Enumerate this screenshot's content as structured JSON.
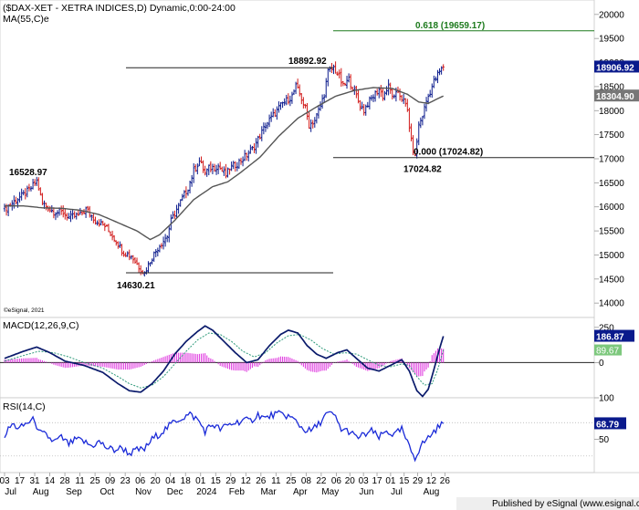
{
  "chart_data": [
    {
      "type": "candlestick",
      "title": "($DAX-XET - XETRA INDICES,D) Dynamic,0:00-24:00",
      "indicator_label": "MA(55,C)e",
      "watermark": "©eSignal, 2021",
      "ylim": [
        13700,
        20300
      ],
      "yticks": [
        14000,
        14500,
        15000,
        15500,
        16000,
        16500,
        17000,
        17500,
        18000,
        18500,
        19000,
        19500,
        20000
      ],
      "last_price": "18906.92",
      "ma_value": "18304.90",
      "colors": {
        "up": "#0a1a8c",
        "down": "#d11a1a",
        "ma": "#555555",
        "last_tag": "#0a1a8c",
        "ma_tag": "#777777",
        "fib": "#1d7a1d"
      },
      "fib_label": "0.618 (19659.17)",
      "fib_zero_label": "0.000 (17024.82)",
      "annotations": [
        {
          "label": "16528.97",
          "value": 16528.97
        },
        {
          "label": "14630.21",
          "value": 14630.21
        },
        {
          "label": "18892.92",
          "value": 18892.92
        },
        {
          "label": "17024.82",
          "value": 17024.82
        }
      ],
      "close_path": [
        [
          0,
          15950
        ],
        [
          6,
          16150
        ],
        [
          10,
          16250
        ],
        [
          13,
          16350
        ],
        [
          17,
          16529
        ],
        [
          20,
          16080
        ],
        [
          26,
          15900
        ],
        [
          31,
          15880
        ],
        [
          34,
          15780
        ],
        [
          40,
          15830
        ],
        [
          43,
          15950
        ],
        [
          48,
          15720
        ],
        [
          53,
          15600
        ],
        [
          58,
          15350
        ],
        [
          63,
          15050
        ],
        [
          67,
          14980
        ],
        [
          72,
          14700
        ],
        [
          74,
          14630
        ],
        [
          78,
          14950
        ],
        [
          81,
          15150
        ],
        [
          86,
          15400
        ],
        [
          88,
          15700
        ],
        [
          93,
          16100
        ],
        [
          97,
          16400
        ],
        [
          100,
          16750
        ],
        [
          103,
          16950
        ],
        [
          106,
          16700
        ],
        [
          108,
          16800
        ],
        [
          113,
          16850
        ],
        [
          117,
          16650
        ],
        [
          119,
          16800
        ],
        [
          123,
          16900
        ],
        [
          126,
          17000
        ],
        [
          131,
          17200
        ],
        [
          134,
          17400
        ],
        [
          138,
          17700
        ],
        [
          143,
          17950
        ],
        [
          147,
          18150
        ],
        [
          152,
          18300
        ],
        [
          154,
          18500
        ],
        [
          156,
          18350
        ],
        [
          159,
          18050
        ],
        [
          161,
          17700
        ],
        [
          164,
          17800
        ],
        [
          167,
          18100
        ],
        [
          169,
          18350
        ],
        [
          171,
          18800
        ],
        [
          174,
          18893
        ],
        [
          177,
          18700
        ],
        [
          179,
          18500
        ],
        [
          182,
          18650
        ],
        [
          185,
          18400
        ],
        [
          187,
          18200
        ],
        [
          190,
          18000
        ],
        [
          192,
          18150
        ],
        [
          195,
          18300
        ],
        [
          198,
          18450
        ],
        [
          200,
          18300
        ],
        [
          203,
          18500
        ],
        [
          206,
          18250
        ],
        [
          208,
          18400
        ],
        [
          211,
          18200
        ],
        [
          213,
          18000
        ],
        [
          215,
          17350
        ],
        [
          217,
          17025
        ],
        [
          219,
          17700
        ],
        [
          221,
          17900
        ],
        [
          223,
          18200
        ],
        [
          225,
          18400
        ],
        [
          227,
          18600
        ],
        [
          229,
          18750
        ],
        [
          232,
          18907
        ]
      ],
      "ma_path": [
        [
          0,
          16020
        ],
        [
          10,
          16020
        ],
        [
          20,
          15980
        ],
        [
          30,
          15970
        ],
        [
          40,
          15930
        ],
        [
          50,
          15840
        ],
        [
          60,
          15670
        ],
        [
          70,
          15500
        ],
        [
          77,
          15320
        ],
        [
          82,
          15420
        ],
        [
          90,
          15720
        ],
        [
          100,
          16150
        ],
        [
          110,
          16420
        ],
        [
          118,
          16520
        ],
        [
          125,
          16720
        ],
        [
          135,
          17030
        ],
        [
          145,
          17470
        ],
        [
          155,
          17840
        ],
        [
          165,
          18080
        ],
        [
          175,
          18300
        ],
        [
          185,
          18420
        ],
        [
          195,
          18480
        ],
        [
          205,
          18460
        ],
        [
          213,
          18340
        ],
        [
          219,
          18180
        ],
        [
          224,
          18150
        ],
        [
          229,
          18250
        ],
        [
          232,
          18305
        ]
      ],
      "x_ticks": [
        {
          "label": "03",
          "bar": 0
        },
        {
          "label": "17",
          "bar": 10
        },
        {
          "label": "31",
          "bar": 20
        },
        {
          "label": "14",
          "bar": 30
        },
        {
          "label": "28",
          "bar": 40
        },
        {
          "label": "11",
          "bar": 50
        },
        {
          "label": "25",
          "bar": 60
        },
        {
          "label": "09",
          "bar": 70
        },
        {
          "label": "23",
          "bar": 80
        },
        {
          "label": "06",
          "bar": 90
        },
        {
          "label": "20",
          "bar": 100
        },
        {
          "label": "04",
          "bar": 110
        },
        {
          "label": "18",
          "bar": 120
        },
        {
          "label": "01",
          "bar": 130
        },
        {
          "label": "15",
          "bar": 140
        },
        {
          "label": "29",
          "bar": 150
        },
        {
          "label": "12",
          "bar": 160
        },
        {
          "label": "26",
          "bar": 170
        },
        {
          "label": "11",
          "bar": 180
        },
        {
          "label": "25",
          "bar": 190
        },
        {
          "label": "08",
          "bar": 200
        },
        {
          "label": "22",
          "bar": 210
        },
        {
          "label": "06",
          "bar": 220
        },
        {
          "label": "20",
          "bar": 229
        },
        {
          "label": "03",
          "bar": 238
        },
        {
          "label": "17",
          "bar": 247
        },
        {
          "label": "01",
          "bar": 256
        },
        {
          "label": "15",
          "bar": 265
        },
        {
          "label": "29",
          "bar": 274
        },
        {
          "label": "12",
          "bar": 283
        },
        {
          "label": "26",
          "bar": 292
        }
      ],
      "month_labels": [
        {
          "label": "Jul",
          "bar": 4
        },
        {
          "label": "Aug",
          "bar": 24
        },
        {
          "label": "Sep",
          "bar": 46
        },
        {
          "label": "Oct",
          "bar": 68
        },
        {
          "label": "Nov",
          "bar": 92
        },
        {
          "label": "Dec",
          "bar": 113
        },
        {
          "label": "2024",
          "bar": 134
        },
        {
          "label": "Feb",
          "bar": 154
        },
        {
          "label": "Mar",
          "bar": 175
        },
        {
          "label": "Apr",
          "bar": 196
        },
        {
          "label": "May",
          "bar": 216
        },
        {
          "label": "Jun",
          "bar": 240
        },
        {
          "label": "Jul",
          "bar": 260
        },
        {
          "label": "Aug",
          "bar": 283
        }
      ]
    },
    {
      "type": "macd",
      "title": "MACD(12,26,9,C)",
      "macd_value": "186.87",
      "signal_value": "89.67",
      "ylim": [
        -250,
        320
      ],
      "ytick_labels": [
        "250",
        "0"
      ],
      "colors": {
        "macd": "#0a1a6b",
        "signal": "#2e9a7a",
        "hist": "#e040e0",
        "macd_tag": "#0a1a8c",
        "signal_tag": "#7dc87d"
      },
      "macd_path": [
        [
          0,
          30
        ],
        [
          10,
          80
        ],
        [
          17,
          110
        ],
        [
          24,
          70
        ],
        [
          32,
          10
        ],
        [
          42,
          -20
        ],
        [
          52,
          -70
        ],
        [
          60,
          -150
        ],
        [
          66,
          -200
        ],
        [
          72,
          -210
        ],
        [
          78,
          -150
        ],
        [
          84,
          -60
        ],
        [
          90,
          60
        ],
        [
          96,
          150
        ],
        [
          102,
          220
        ],
        [
          106,
          260
        ],
        [
          110,
          230
        ],
        [
          116,
          150
        ],
        [
          122,
          70
        ],
        [
          128,
          0
        ],
        [
          134,
          20
        ],
        [
          140,
          120
        ],
        [
          146,
          200
        ],
        [
          150,
          230
        ],
        [
          155,
          210
        ],
        [
          160,
          120
        ],
        [
          165,
          60
        ],
        [
          170,
          30
        ],
        [
          176,
          70
        ],
        [
          181,
          90
        ],
        [
          186,
          30
        ],
        [
          192,
          -40
        ],
        [
          198,
          -60
        ],
        [
          204,
          -20
        ],
        [
          210,
          20
        ],
        [
          214,
          -60
        ],
        [
          218,
          -200
        ],
        [
          221,
          -240
        ],
        [
          224,
          -190
        ],
        [
          227,
          -50
        ],
        [
          230,
          100
        ],
        [
          232,
          187
        ]
      ],
      "signal_path": [
        [
          0,
          10
        ],
        [
          10,
          50
        ],
        [
          18,
          80
        ],
        [
          26,
          70
        ],
        [
          34,
          40
        ],
        [
          42,
          0
        ],
        [
          52,
          -40
        ],
        [
          60,
          -100
        ],
        [
          66,
          -150
        ],
        [
          72,
          -180
        ],
        [
          78,
          -160
        ],
        [
          84,
          -100
        ],
        [
          90,
          -10
        ],
        [
          96,
          80
        ],
        [
          102,
          160
        ],
        [
          108,
          210
        ],
        [
          114,
          200
        ],
        [
          120,
          150
        ],
        [
          126,
          80
        ],
        [
          132,
          40
        ],
        [
          138,
          70
        ],
        [
          144,
          140
        ],
        [
          150,
          190
        ],
        [
          156,
          200
        ],
        [
          162,
          160
        ],
        [
          168,
          100
        ],
        [
          174,
          60
        ],
        [
          180,
          70
        ],
        [
          186,
          60
        ],
        [
          192,
          20
        ],
        [
          198,
          -20
        ],
        [
          204,
          -30
        ],
        [
          210,
          -10
        ],
        [
          214,
          -20
        ],
        [
          218,
          -100
        ],
        [
          222,
          -160
        ],
        [
          226,
          -150
        ],
        [
          229,
          -50
        ],
        [
          232,
          90
        ]
      ]
    },
    {
      "type": "line",
      "title": "RSI(14,C)",
      "rsi_value": "68.79",
      "ylim": [
        10,
        100
      ],
      "ytick_labels": [
        "100",
        "50"
      ],
      "levels": [
        70,
        30
      ],
      "colors": {
        "rsi": "#1a2ad8",
        "rsi_tag": "#0a1a8c"
      },
      "rsi_path": [
        [
          0,
          55
        ],
        [
          4,
          68
        ],
        [
          8,
          63
        ],
        [
          12,
          70
        ],
        [
          16,
          74
        ],
        [
          18,
          58
        ],
        [
          22,
          55
        ],
        [
          26,
          47
        ],
        [
          30,
          52
        ],
        [
          34,
          44
        ],
        [
          38,
          50
        ],
        [
          42,
          47
        ],
        [
          46,
          42
        ],
        [
          50,
          47
        ],
        [
          54,
          40
        ],
        [
          58,
          37
        ],
        [
          62,
          40
        ],
        [
          66,
          33
        ],
        [
          70,
          37
        ],
        [
          74,
          38
        ],
        [
          78,
          50
        ],
        [
          82,
          57
        ],
        [
          86,
          64
        ],
        [
          90,
          72
        ],
        [
          94,
          76
        ],
        [
          98,
          80
        ],
        [
          102,
          74
        ],
        [
          106,
          60
        ],
        [
          110,
          68
        ],
        [
          114,
          62
        ],
        [
          118,
          67
        ],
        [
          122,
          70
        ],
        [
          126,
          73
        ],
        [
          130,
          72
        ],
        [
          134,
          80
        ],
        [
          138,
          75
        ],
        [
          142,
          80
        ],
        [
          146,
          80
        ],
        [
          150,
          78
        ],
        [
          154,
          72
        ],
        [
          158,
          62
        ],
        [
          162,
          60
        ],
        [
          166,
          68
        ],
        [
          170,
          80
        ],
        [
          174,
          80
        ],
        [
          178,
          62
        ],
        [
          182,
          60
        ],
        [
          186,
          52
        ],
        [
          190,
          55
        ],
        [
          194,
          60
        ],
        [
          198,
          52
        ],
        [
          202,
          60
        ],
        [
          206,
          55
        ],
        [
          210,
          62
        ],
        [
          214,
          40
        ],
        [
          217,
          28
        ],
        [
          220,
          42
        ],
        [
          224,
          52
        ],
        [
          228,
          62
        ],
        [
          232,
          69
        ]
      ]
    }
  ],
  "footer": {
    "published": "Published by eSignal (www.esignal.com)"
  }
}
